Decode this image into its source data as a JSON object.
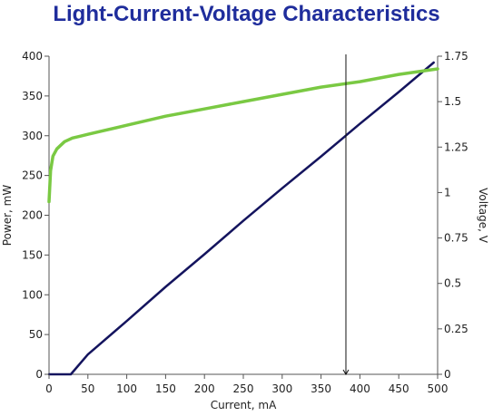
{
  "chart_data": {
    "type": "line",
    "title": "Light-Current-Voltage Characteristics",
    "xlabel": "Current, mA",
    "ylabel": "Power, mW",
    "y2label": "Voltage, V",
    "xlim": [
      0,
      500
    ],
    "ylim": [
      0,
      400
    ],
    "y2lim": [
      0,
      1.75
    ],
    "x_ticks": [
      0,
      50,
      100,
      150,
      200,
      250,
      300,
      350,
      400,
      450,
      500
    ],
    "y_ticks": [
      0,
      50,
      100,
      150,
      200,
      250,
      300,
      350,
      400
    ],
    "y2_ticks": [
      "0",
      "0.25",
      "0.5",
      "0.75",
      "1",
      "1.25",
      "1.5",
      "1.75"
    ],
    "grid": false,
    "marker_line_x": 382,
    "series": [
      {
        "axis": "left",
        "color": "#14145e",
        "x": [
          0,
          28,
          50,
          100,
          150,
          200,
          250,
          300,
          350,
          400,
          450,
          495
        ],
        "y": [
          0,
          0,
          25,
          67,
          110,
          151,
          193,
          234,
          274,
          315,
          355,
          392
        ]
      },
      {
        "axis": "right",
        "color": "#7ac943",
        "x": [
          0,
          2,
          5,
          10,
          15,
          20,
          30,
          40,
          50,
          70,
          100,
          150,
          200,
          250,
          300,
          350,
          400,
          450,
          500
        ],
        "y": [
          0.95,
          1.12,
          1.2,
          1.24,
          1.26,
          1.28,
          1.3,
          1.31,
          1.32,
          1.34,
          1.37,
          1.42,
          1.46,
          1.5,
          1.54,
          1.58,
          1.61,
          1.65,
          1.68
        ]
      }
    ]
  }
}
